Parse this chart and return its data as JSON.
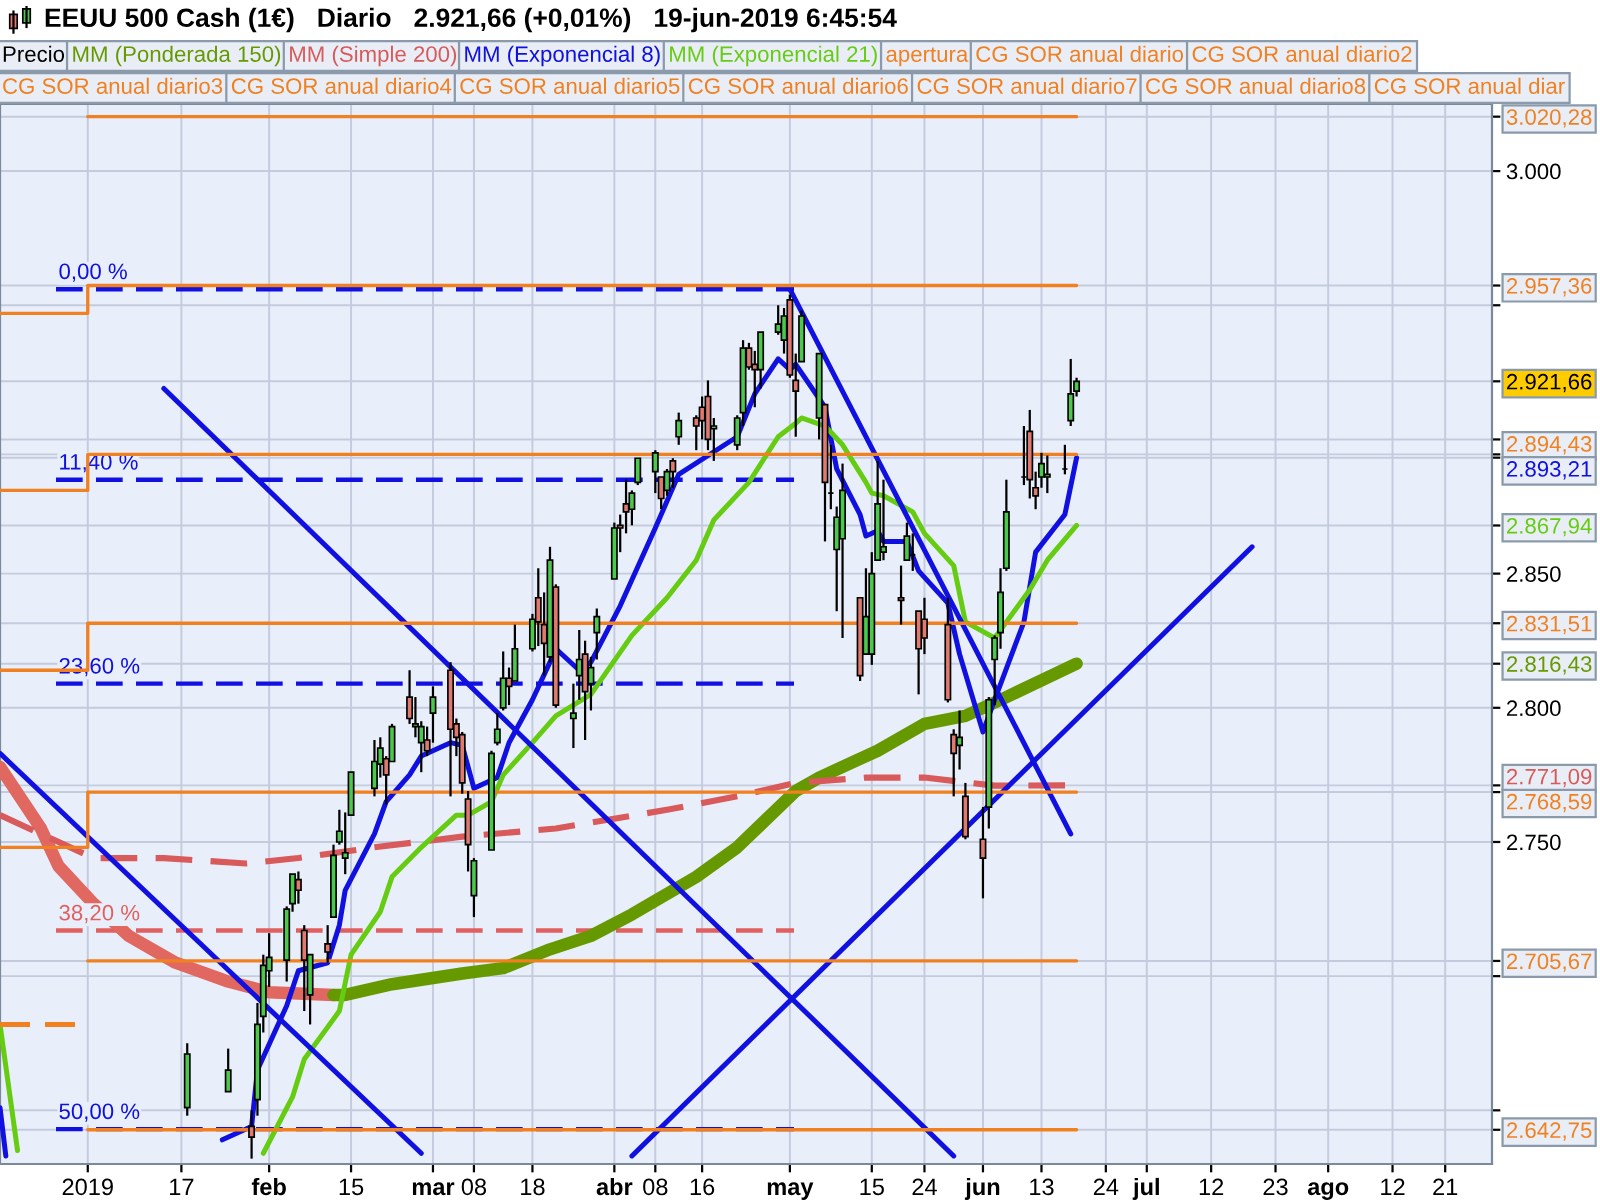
{
  "chart_data": {
    "type": "candlestick",
    "title": "EEUU 500 Cash (1€)   Diario   2.921,66 (+0,01%)   19-jun-2019 6:45:54",
    "xlim": [
      "2018-12-17",
      "2019-08-29"
    ],
    "xticks": [
      {
        "value": "2019-01-01",
        "label": "2019"
      },
      {
        "value": "2019-01-17",
        "label": "17"
      },
      {
        "value": "2019-02-01",
        "label": "feb"
      },
      {
        "value": "2019-02-15",
        "label": "15"
      },
      {
        "value": "2019-03-01",
        "label": "mar"
      },
      {
        "value": "2019-03-08",
        "label": "08"
      },
      {
        "value": "2019-03-18",
        "label": "18"
      },
      {
        "value": "2019-04-01",
        "label": "abr"
      },
      {
        "value": "2019-04-08",
        "label": "08"
      },
      {
        "value": "2019-04-16",
        "label": "16"
      },
      {
        "value": "2019-05-01",
        "label": "may"
      },
      {
        "value": "2019-05-15",
        "label": "15"
      },
      {
        "value": "2019-05-24",
        "label": "24"
      },
      {
        "value": "2019-06-03",
        "label": "jun"
      },
      {
        "value": "2019-06-13",
        "label": "13"
      },
      {
        "value": "2019-06-24",
        "label": "24"
      },
      {
        "value": "2019-07-01",
        "label": "jul"
      },
      {
        "value": "2019-07-12",
        "label": "12"
      },
      {
        "value": "2019-07-23",
        "label": "23"
      },
      {
        "value": "2019-08-01",
        "label": "ago"
      },
      {
        "value": "2019-08-12",
        "label": "12"
      },
      {
        "value": "2019-08-21",
        "label": "21"
      }
    ],
    "ylim": [
      2630,
      3025
    ],
    "yticks": [
      {
        "value": 3020.28,
        "label": "3.020,28"
      },
      {
        "value": 3000,
        "label": "3.000"
      },
      {
        "value": 2957.36,
        "label": "2.957,36"
      },
      {
        "value": 2950,
        "label": null
      },
      {
        "value": 2921.66,
        "label": "2.921,66"
      },
      {
        "value": 2900,
        "label": null
      },
      {
        "value": 2894.43,
        "label": "2.894,43"
      },
      {
        "value": 2893.21,
        "label": "2.893,21"
      },
      {
        "value": 2867.94,
        "label": "2.867,94"
      },
      {
        "value": 2850,
        "label": "2.850"
      },
      {
        "value": 2831.51,
        "label": "2.831,51"
      },
      {
        "value": 2816.43,
        "label": "2.816,43"
      },
      {
        "value": 2800,
        "label": "2.800"
      },
      {
        "value": 2771.09,
        "label": "2.771,09"
      },
      {
        "value": 2768.59,
        "label": "2.768,59"
      },
      {
        "value": 2750,
        "label": "2.750"
      },
      {
        "value": 2705.67,
        "label": "2.705,67"
      },
      {
        "value": 2700,
        "label": null
      },
      {
        "value": 2650,
        "label": null
      },
      {
        "value": 2642.75,
        "label": "2.642,75"
      }
    ],
    "grid": true,
    "legend": "top",
    "series": [
      {
        "name": "Precio",
        "x": [
          "2019-01-18",
          "2019-01-25",
          "2019-01-29",
          "2019-01-30",
          "2019-01-31",
          "2019-02-01",
          "2019-02-04",
          "2019-02-05",
          "2019-02-06",
          "2019-02-07",
          "2019-02-08",
          "2019-02-11",
          "2019-02-12",
          "2019-02-13",
          "2019-02-14",
          "2019-02-15",
          "2019-02-19",
          "2019-02-20",
          "2019-02-21",
          "2019-02-22",
          "2019-02-25",
          "2019-02-26",
          "2019-02-27",
          "2019-02-28",
          "2019-03-01",
          "2019-03-04",
          "2019-03-05",
          "2019-03-06",
          "2019-03-07",
          "2019-03-08",
          "2019-03-11",
          "2019-03-12",
          "2019-03-13",
          "2019-03-14",
          "2019-03-15",
          "2019-03-18",
          "2019-03-19",
          "2019-03-20",
          "2019-03-21",
          "2019-03-22",
          "2019-03-25",
          "2019-03-26",
          "2019-03-27",
          "2019-03-28",
          "2019-03-29",
          "2019-04-01",
          "2019-04-02",
          "2019-04-03",
          "2019-04-04",
          "2019-04-05",
          "2019-04-08",
          "2019-04-09",
          "2019-04-10",
          "2019-04-11",
          "2019-04-12",
          "2019-04-15",
          "2019-04-16",
          "2019-04-17",
          "2019-04-18",
          "2019-04-22",
          "2019-04-23",
          "2019-04-24",
          "2019-04-25",
          "2019-04-26",
          "2019-04-29",
          "2019-04-30",
          "2019-05-01",
          "2019-05-02",
          "2019-05-03",
          "2019-05-06",
          "2019-05-07",
          "2019-05-08",
          "2019-05-09",
          "2019-05-10",
          "2019-05-13",
          "2019-05-14",
          "2019-05-15",
          "2019-05-16",
          "2019-05-17",
          "2019-05-20",
          "2019-05-21",
          "2019-05-22",
          "2019-05-23",
          "2019-05-24",
          "2019-05-28",
          "2019-05-29",
          "2019-05-30",
          "2019-05-31",
          "2019-06-03",
          "2019-06-04",
          "2019-06-05",
          "2019-06-06",
          "2019-06-07",
          "2019-06-10",
          "2019-06-11",
          "2019-06-12",
          "2019-06-13",
          "2019-06-14",
          "2019-06-17",
          "2019-06-18",
          "2019-06-19"
        ],
        "ohlc": [
          [
            2651,
            2675,
            2648,
            2671
          ],
          [
            2657,
            2673,
            2657,
            2665
          ],
          [
            2644,
            2650,
            2632,
            2640
          ],
          [
            2654,
            2690,
            2648,
            2682
          ],
          [
            2685,
            2708,
            2679,
            2704
          ],
          [
            2702,
            2716,
            2696,
            2707
          ],
          [
            2706,
            2726,
            2698,
            2725
          ],
          [
            2727,
            2738,
            2724,
            2738
          ],
          [
            2736,
            2739,
            2727,
            2732
          ],
          [
            2717,
            2719,
            2687,
            2706
          ],
          [
            2693,
            2708,
            2682,
            2708
          ],
          [
            2712,
            2719,
            2705,
            2709
          ],
          [
            2722,
            2749,
            2722,
            2745
          ],
          [
            2750,
            2762,
            2749,
            2754
          ],
          [
            2744,
            2761,
            2738,
            2746
          ],
          [
            2760,
            2776,
            2760,
            2776
          ],
          [
            2770,
            2788,
            2767,
            2780
          ],
          [
            2779,
            2789,
            2774,
            2785
          ],
          [
            2781,
            2782,
            2764,
            2775
          ],
          [
            2780,
            2794,
            2780,
            2793
          ],
          [
            2804,
            2814,
            2794,
            2796
          ],
          [
            2793,
            2804,
            2789,
            2794
          ],
          [
            2787,
            2795,
            2776,
            2793
          ],
          [
            2788,
            2793,
            2782,
            2784
          ],
          [
            2798,
            2808,
            2787,
            2804
          ],
          [
            2814,
            2817,
            2767,
            2792
          ],
          [
            2794,
            2796,
            2782,
            2789
          ],
          [
            2790,
            2791,
            2768,
            2772
          ],
          [
            2766,
            2769,
            2739,
            2749
          ],
          [
            2730,
            2744,
            2722,
            2743
          ],
          [
            2747,
            2784,
            2747,
            2783
          ],
          [
            2787,
            2798,
            2786,
            2792
          ],
          [
            2800,
            2821,
            2799,
            2811
          ],
          [
            2811,
            2815,
            2801,
            2808
          ],
          [
            2810,
            2831,
            2810,
            2822
          ],
          [
            2822,
            2835,
            2821,
            2833
          ],
          [
            2841,
            2852,
            2823,
            2832
          ],
          [
            2831,
            2843,
            2812,
            2824
          ],
          [
            2819,
            2860,
            2817,
            2855
          ],
          [
            2845,
            2846,
            2800,
            2801
          ],
          [
            2796,
            2809,
            2785,
            2798
          ],
          [
            2812,
            2829,
            2803,
            2818
          ],
          [
            2820,
            2825,
            2788,
            2806
          ],
          [
            2809,
            2819,
            2799,
            2815
          ],
          [
            2828,
            2837,
            2818,
            2834
          ],
          [
            2848,
            2869,
            2848,
            2867
          ],
          [
            2868,
            2872,
            2858,
            2867
          ],
          [
            2876,
            2885,
            2865,
            2873
          ],
          [
            2874,
            2881,
            2868,
            2880
          ],
          [
            2884,
            2893,
            2883,
            2893
          ],
          [
            2888,
            2896,
            2880,
            2895
          ],
          [
            2886,
            2886,
            2874,
            2878
          ],
          [
            2881,
            2889,
            2879,
            2888
          ],
          [
            2892,
            2893,
            2882,
            2888
          ],
          [
            2901,
            2910,
            2898,
            2907
          ],
          [
            2908,
            2909,
            2896,
            2905
          ],
          [
            2912,
            2916,
            2900,
            2907
          ],
          [
            2916,
            2922,
            2896,
            2900
          ],
          [
            2904,
            2908,
            2892,
            2905
          ],
          [
            2898,
            2909,
            2896,
            2908
          ],
          [
            2910,
            2937,
            2905,
            2934
          ],
          [
            2934,
            2936,
            2926,
            2927
          ],
          [
            2928,
            2933,
            2912,
            2926
          ],
          [
            2926,
            2940,
            2919,
            2940
          ],
          [
            2940,
            2950,
            2939,
            2943
          ],
          [
            2937,
            2949,
            2932,
            2946
          ],
          [
            2952,
            2954,
            2923,
            2924
          ],
          [
            2922,
            2932,
            2901,
            2918
          ],
          [
            2929,
            2948,
            2929,
            2946
          ],
          [
            2908,
            2932,
            2900,
            2932
          ],
          [
            2913,
            2913,
            2862,
            2884
          ],
          [
            2880,
            2898,
            2874,
            2880
          ],
          [
            2859,
            2875,
            2836,
            2871
          ],
          [
            2863,
            2891,
            2826,
            2881
          ],
          [
            2841,
            2841,
            2810,
            2812
          ],
          [
            2820,
            2852,
            2820,
            2834
          ],
          [
            2820,
            2858,
            2816,
            2850
          ],
          [
            2855,
            2892,
            2855,
            2876
          ],
          [
            2858,
            2885,
            2855,
            2860
          ],
          [
            2841,
            2853,
            2831,
            2840
          ],
          [
            2855,
            2869,
            2855,
            2864
          ],
          [
            2857,
            2865,
            2851,
            2857
          ],
          [
            2836,
            2836,
            2805,
            2822
          ],
          [
            2833,
            2841,
            2820,
            2826
          ],
          [
            2831,
            2841,
            2802,
            2803
          ],
          [
            2790,
            2792,
            2767,
            2783
          ],
          [
            2786,
            2799,
            2777,
            2789
          ],
          [
            2767,
            2772,
            2751,
            2752
          ],
          [
            2751,
            2763,
            2729,
            2744
          ],
          [
            2763,
            2804,
            2755,
            2803
          ],
          [
            2818,
            2827,
            2801,
            2826
          ],
          [
            2828,
            2852,
            2822,
            2843
          ],
          [
            2852,
            2885,
            2851,
            2873
          ],
          [
            2886,
            2905,
            2883,
            2886
          ],
          [
            2903,
            2911,
            2878,
            2885
          ],
          [
            2882,
            2888,
            2874,
            2879
          ],
          [
            2886,
            2895,
            2882,
            2891
          ],
          [
            2886,
            2894,
            2880,
            2887
          ],
          [
            2889,
            2898,
            2887,
            2889
          ],
          [
            2907,
            2930,
            2905,
            2917
          ],
          [
            2918,
            2923,
            2916,
            2921.66
          ]
        ]
      },
      {
        "type": "line",
        "color": "#e06860",
        "x": [
          "2018-12-17",
          "2018-12-24",
          "2018-12-27",
          "2019-01-02",
          "2019-01-08",
          "2019-01-16",
          "2019-01-25",
          "2019-02-01",
          "2019-02-12"
        ],
        "values": [
          2778,
          2755,
          2741,
          2727,
          2715,
          2705,
          2698,
          2694,
          2693
        ]
      },
      {
        "type": "line",
        "name": "MM (Ponderada 150)",
        "color": "#669900",
        "x": [
          "2019-02-12",
          "2019-02-14",
          "2019-02-22",
          "2019-03-06",
          "2019-03-13",
          "2019-03-21",
          "2019-03-28",
          "2019-04-04",
          "2019-04-15",
          "2019-04-22",
          "2019-05-02",
          "2019-05-06",
          "2019-05-16",
          "2019-05-24",
          "2019-05-31",
          "2019-06-07",
          "2019-06-19"
        ],
        "values": [
          2693,
          2693,
          2697,
          2701,
          2703,
          2710,
          2715,
          2723,
          2737,
          2748,
          2769,
          2774,
          2784,
          2794,
          2797,
          2804,
          2816.43
        ]
      },
      {
        "type": "line",
        "name": "MM (Simple 200)",
        "color": "#d85a5a",
        "line_style": "dashed",
        "x": [
          "2018-12-17",
          "2018-12-24",
          "2019-01-02",
          "2019-01-14",
          "2019-01-28",
          "2019-02-06",
          "2019-02-19",
          "2019-03-06",
          "2019-03-22",
          "2019-04-10",
          "2019-04-22",
          "2019-05-02",
          "2019-05-14",
          "2019-05-24",
          "2019-06-05",
          "2019-06-19"
        ],
        "values": [
          2760,
          2753,
          2744,
          2744,
          2742,
          2744,
          2748,
          2752,
          2755,
          2762,
          2767,
          2772,
          2774,
          2774,
          2771,
          2771.09
        ]
      },
      {
        "type": "line",
        "name": "MM (Exponencial 8)",
        "color": "#1010e0",
        "x": [
          "2018-12-17",
          "2018-12-18",
          "2019-01-02",
          "2019-01-24",
          "2019-01-29",
          "2019-01-30",
          "2019-02-04",
          "2019-02-06",
          "2019-02-11",
          "2019-02-13",
          "2019-02-14",
          "2019-02-19",
          "2019-02-21",
          "2019-02-25",
          "2019-02-27",
          "2019-03-04",
          "2019-03-06",
          "2019-03-08",
          "2019-03-12",
          "2019-03-14",
          "2019-03-18",
          "2019-03-21",
          "2019-03-22",
          "2019-03-26",
          "2019-03-28",
          "2019-04-02",
          "2019-04-08",
          "2019-04-12",
          "2019-04-22",
          "2019-04-25",
          "2019-04-29",
          "2019-05-01",
          "2019-05-02",
          "2019-05-07",
          "2019-05-09",
          "2019-05-13",
          "2019-05-14",
          "2019-05-16",
          "2019-05-17",
          "2019-05-21",
          "2019-05-23",
          "2019-05-28",
          "2019-05-30",
          "2019-06-03",
          "2019-06-05",
          "2019-06-10",
          "2019-06-12",
          "2019-06-17",
          "2019-06-19"
        ],
        "values": [
          2651,
          2633,
          null,
          2639,
          2644,
          2665,
          2689,
          2702,
          2705,
          2719,
          2732,
          2753,
          2765,
          2775,
          2782,
          2787,
          2786,
          2770,
          2774,
          2787,
          2803,
          2817,
          2822,
          2814,
          2817,
          2838,
          2867,
          2887,
          2901,
          2917,
          2930,
          2926,
          2928,
          2912,
          2889,
          2872,
          2864,
          2866,
          2862,
          2862,
          2851,
          2839,
          2820,
          2791,
          2803,
          2832,
          2858,
          2872,
          2893.21
        ]
      },
      {
        "type": "line",
        "name": "MM (Exponencial 21)",
        "color": "#66cc11",
        "x": [
          "2018-12-17",
          "2018-12-20",
          "2019-01-02",
          "2019-01-31",
          "2019-02-05",
          "2019-02-07",
          "2019-02-13",
          "2019-02-15",
          "2019-02-20",
          "2019-02-22",
          "2019-02-27",
          "2019-03-05",
          "2019-03-07",
          "2019-03-11",
          "2019-03-13",
          "2019-03-18",
          "2019-03-22",
          "2019-03-28",
          "2019-04-04",
          "2019-04-10",
          "2019-04-15",
          "2019-04-18",
          "2019-04-24",
          "2019-04-29",
          "2019-05-02",
          "2019-05-03",
          "2019-05-07",
          "2019-05-10",
          "2019-05-14",
          "2019-05-15",
          "2019-05-17",
          "2019-05-22",
          "2019-05-24",
          "2019-05-29",
          "2019-05-31",
          "2019-06-05",
          "2019-06-06",
          "2019-06-11",
          "2019-06-14",
          "2019-06-19"
        ],
        "values": [
          2682,
          2635,
          null,
          2634,
          2655,
          2669,
          2687,
          2708,
          2724,
          2737,
          2748,
          2760,
          2760,
          2765,
          2775,
          2787,
          2797,
          2805,
          2827,
          2841,
          2855,
          2870,
          2884,
          2901,
          2906,
          2908,
          2905,
          2898,
          2884,
          2880,
          2879,
          2873,
          2865,
          2853,
          2832,
          2826,
          2829,
          2844,
          2855,
          2867.94
        ]
      },
      {
        "type": "line",
        "name": "apertura",
        "color": "#f08020",
        "line_style": "dashed",
        "x": [
          "2018-12-17",
          "2018-12-31"
        ],
        "values": [
          2682,
          2682
        ]
      },
      {
        "type": "step",
        "name": "CG SOR anual diario",
        "color": "#f08020",
        "x": [
          "2019-01-01",
          "2019-06-19"
        ],
        "values": [
          3020.28,
          3020.28
        ]
      },
      {
        "type": "step",
        "name": "CG SOR anual diario2",
        "color": "#f08020",
        "x": [
          "2018-12-17",
          "2019-01-01",
          "2019-06-19"
        ],
        "values": [
          2947,
          2957.36,
          2957.36
        ]
      },
      {
        "type": "step",
        "name": "CG SOR anual diario3",
        "color": "#f08020",
        "x": [
          "2018-12-17",
          "2019-01-01",
          "2019-06-19"
        ],
        "values": [
          2881,
          2894.43,
          2894.43
        ]
      },
      {
        "type": "step",
        "name": "CG SOR anual diario4",
        "color": "#f08020",
        "x": [
          "2018-12-17",
          "2019-01-01",
          "2019-06-19"
        ],
        "values": [
          2814,
          2831.51,
          2831.51
        ]
      },
      {
        "type": "step",
        "name": "CG SOR anual diario5",
        "color": "#f08020",
        "x": [
          "2018-12-17",
          "2019-01-01",
          "2019-06-19"
        ],
        "values": [
          2748,
          2768.59,
          2768.59
        ]
      },
      {
        "type": "step",
        "name": "CG SOR anual diario6",
        "color": "#f08020",
        "x": [
          "2019-01-01",
          "2019-06-19"
        ],
        "values": [
          2705.67,
          2705.67
        ]
      },
      {
        "type": "step",
        "name": "CG SOR anual diario7",
        "color": "#f08020",
        "x": [
          "2019-01-01",
          "2019-06-19"
        ],
        "values": [
          2642.75,
          2642.75
        ]
      },
      {
        "type": "line",
        "color": "#1010e0",
        "x": [
          "2019-01-14",
          "2019-05-29"
        ],
        "values": [
          2919,
          2633
        ]
      },
      {
        "type": "line",
        "color": "#1010e0",
        "x": [
          "2018-12-17",
          "2019-02-27"
        ],
        "values": [
          2783,
          2634
        ]
      },
      {
        "type": "line",
        "color": "#1010e0",
        "x": [
          "2019-04-04",
          "2019-07-19"
        ],
        "values": [
          2633,
          2860
        ]
      },
      {
        "type": "line",
        "color": "#1010e0",
        "x": [
          "2019-05-01",
          "2019-06-18"
        ],
        "values": [
          2956,
          2753
        ]
      }
    ],
    "ref_lines": [
      {
        "axis": "y",
        "value": 2956,
        "color": "#1010e0",
        "line_style": "dashed"
      },
      {
        "axis": "y",
        "value": 2885,
        "color": "#1010e0",
        "line_style": "dashed"
      },
      {
        "axis": "y",
        "value": 2809,
        "color": "#1010e0",
        "line_style": "dashed"
      },
      {
        "axis": "y",
        "value": 2717,
        "color": "#e06060",
        "line_style": "dashed"
      },
      {
        "axis": "y",
        "value": 2643,
        "color": "#1010e0",
        "line_style": "dashed"
      }
    ],
    "annotations": [
      "CG SOR anual diario8",
      "CG SOR anual diar",
      {
        "text": "0,00 %",
        "x": "2018-12-27",
        "y": 2956
      },
      {
        "text": "11,40 %",
        "x": "2018-12-27",
        "y": 2885
      },
      {
        "text": "23,60 %",
        "x": "2018-12-27",
        "y": 2809
      },
      {
        "text": "38,20 %",
        "x": "2018-12-27",
        "y": 2717
      },
      {
        "text": "50,00 %",
        "x": "2018-12-27",
        "y": 2643
      }
    ]
  }
}
